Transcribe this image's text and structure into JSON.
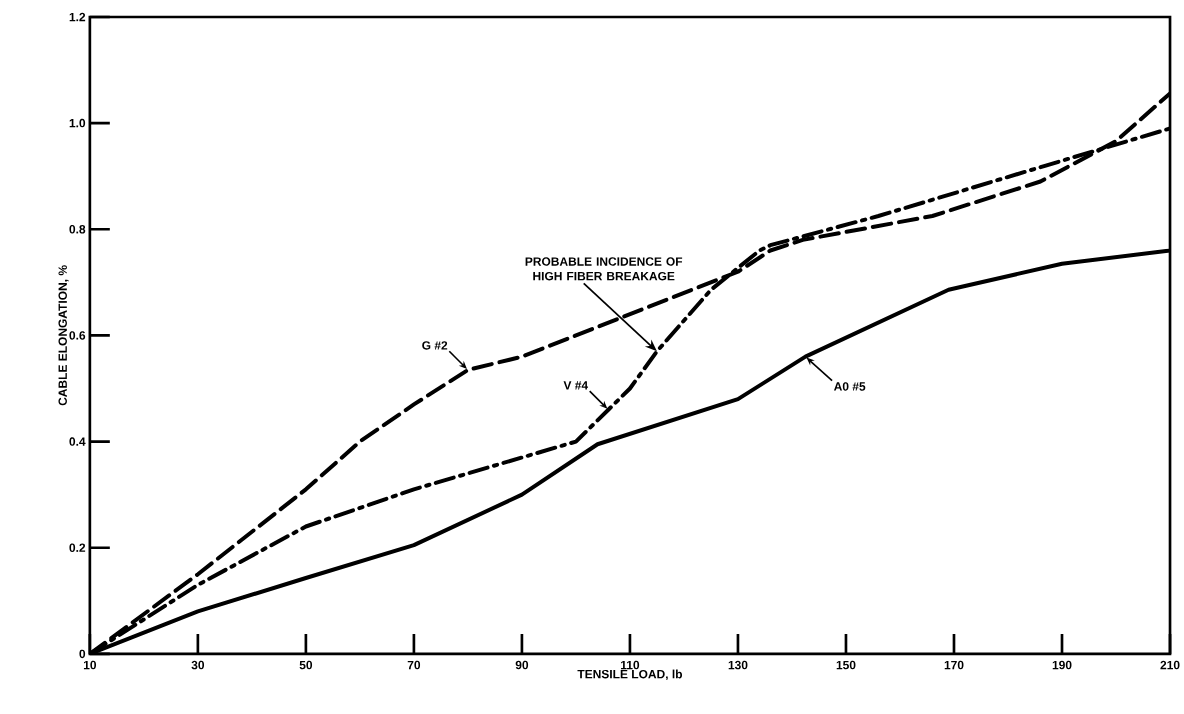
{
  "chart_data": {
    "type": "line",
    "xlabel": "TENSILE LOAD, lb",
    "ylabel": "CABLE ELONGATION, %",
    "xlim": [
      10,
      210
    ],
    "ylim": [
      0,
      1.2
    ],
    "xticks": [
      10,
      30,
      50,
      70,
      90,
      110,
      130,
      150,
      170,
      190,
      210
    ],
    "yticks": [
      0,
      0.2,
      0.4,
      0.6,
      0.8,
      {
        "value": 1,
        "label": "1.0"
      },
      1.2
    ],
    "grid": false,
    "legend": false,
    "marker": "none",
    "series": [
      {
        "name": "G #2",
        "color": "#000000",
        "line_style": "dashed",
        "x": [
          10,
          30,
          50,
          60,
          70,
          80,
          90,
          110,
          130,
          136,
          142,
          166,
          186,
          200,
          210
        ],
        "values": [
          0,
          0.15,
          0.31,
          0.4,
          0.47,
          0.535,
          0.56,
          0.64,
          0.72,
          0.76,
          0.78,
          0.825,
          0.89,
          0.966,
          1.056
        ]
      },
      {
        "name": "V #4",
        "color": "#000000",
        "line_style": "dashdot",
        "x": [
          10,
          30,
          50,
          70,
          90,
          100,
          106,
          110,
          115,
          125,
          134,
          136,
          156,
          187,
          210
        ],
        "values": [
          0,
          0.13,
          0.24,
          0.31,
          0.37,
          0.4,
          0.46,
          0.5,
          0.57,
          0.686,
          0.76,
          0.77,
          0.825,
          0.92,
          0.99
        ]
      },
      {
        "name": "A0 #5",
        "color": "#000000",
        "line_style": "solid",
        "x": [
          10,
          30,
          50,
          70,
          90,
          104,
          130,
          142.5,
          169,
          190,
          210
        ],
        "values": [
          0,
          0.08,
          0.143,
          0.205,
          0.3,
          0.395,
          0.48,
          0.56,
          0.686,
          0.735,
          0.76
        ]
      }
    ],
    "annotations": [
      {
        "text": "PROBABLE INCIDENCE OF HIGH FIBER BREAKAGE",
        "x": 115,
        "y": 0.57
      }
    ]
  }
}
